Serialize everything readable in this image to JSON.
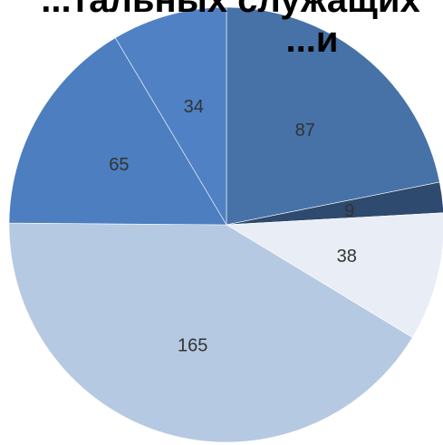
{
  "chart_data": {
    "type": "pie",
    "title_lines": [
      "...тальных служащих",
      "...и"
    ],
    "labels": [
      "87",
      "9",
      "38",
      "165",
      "65",
      "34"
    ],
    "values": [
      87,
      9,
      38,
      165,
      65,
      34
    ],
    "colors": [
      "#4672a8",
      "#2e4a6e",
      "#e9eef6",
      "#b6c9e2",
      "#4c7ec0",
      "#5081c4"
    ],
    "legend": "none",
    "grid": false
  }
}
